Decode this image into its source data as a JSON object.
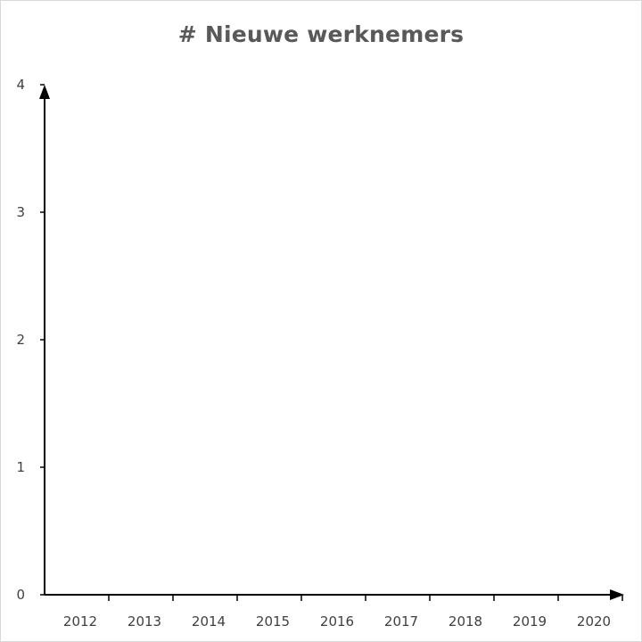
{
  "chart_data": {
    "type": "bar",
    "title": "# Nieuwe werknemers",
    "categories": [
      "2012",
      "2013",
      "2014",
      "2015",
      "2016",
      "2017",
      "2018",
      "2019",
      "2020"
    ],
    "series": [
      {
        "values": [
          0,
          0,
          0,
          0,
          0,
          0,
          0,
          0,
          0
        ]
      }
    ],
    "y_ticks": [
      "0",
      "1",
      "2",
      "3",
      "4"
    ],
    "ylim": [
      0,
      4
    ],
    "xlabel": "",
    "ylabel": "",
    "grid": false,
    "legend": "none",
    "colors": {
      "axis": "#000000",
      "title": "#595959",
      "tick_text": "#404040"
    }
  }
}
